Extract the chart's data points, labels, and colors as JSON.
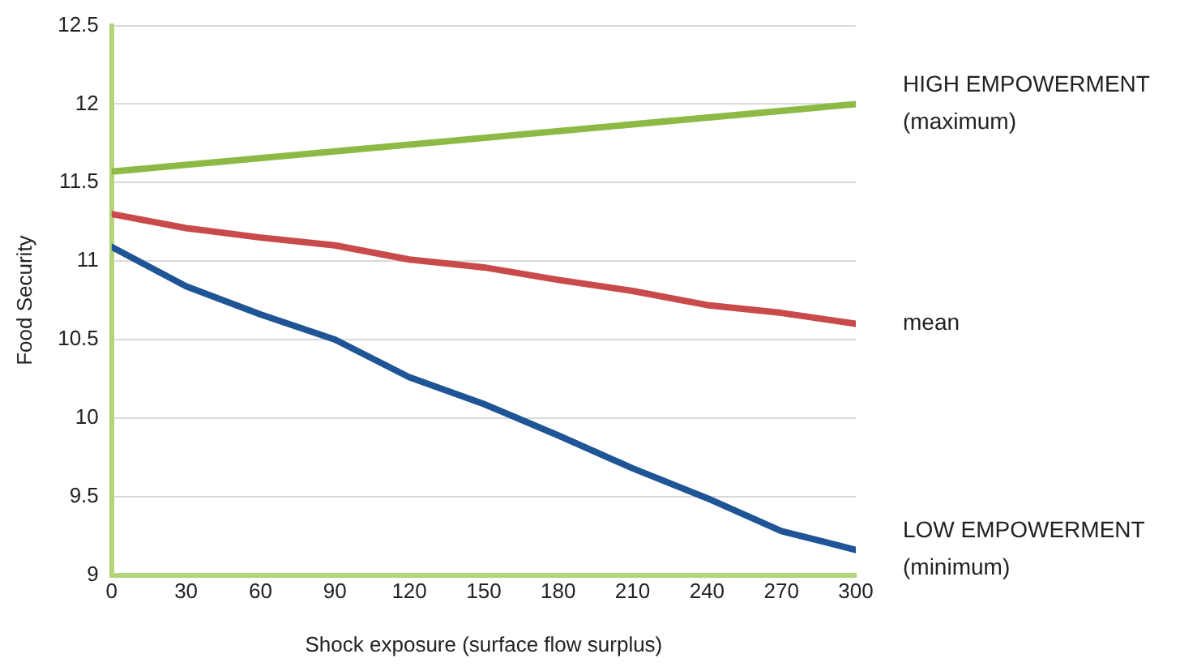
{
  "chart_data": {
    "type": "line",
    "xlabel": "Shock exposure (surface flow surplus)",
    "ylabel": "Food Security",
    "x": [
      0,
      30,
      60,
      90,
      120,
      150,
      180,
      210,
      240,
      270,
      300
    ],
    "series": [
      {
        "name": "HIGH EMPOWERMENT (maximum)",
        "color": "#8cba45",
        "x": [
          0,
          300
        ],
        "values": [
          11.57,
          12.0
        ]
      },
      {
        "name": "mean",
        "color": "#c94a4a",
        "values": [
          11.3,
          11.21,
          11.15,
          11.1,
          11.01,
          10.96,
          10.88,
          10.81,
          10.72,
          10.67,
          10.6
        ]
      },
      {
        "name": "LOW EMPOWERMENT (minimum)",
        "color": "#1f5596",
        "values": [
          11.09,
          10.84,
          10.66,
          10.5,
          10.26,
          10.09,
          9.89,
          9.68,
          9.49,
          9.28,
          9.16
        ]
      }
    ],
    "xlim": [
      0,
      300
    ],
    "xticks": [
      0,
      30,
      60,
      90,
      120,
      150,
      180,
      210,
      240,
      270,
      300
    ],
    "ylim": [
      9,
      12.5
    ],
    "yticks": [
      9,
      9.5,
      10,
      10.5,
      11,
      11.5,
      12,
      12.5
    ],
    "grid": "y",
    "legend": false,
    "marker": "none",
    "line_style": "solid"
  }
}
